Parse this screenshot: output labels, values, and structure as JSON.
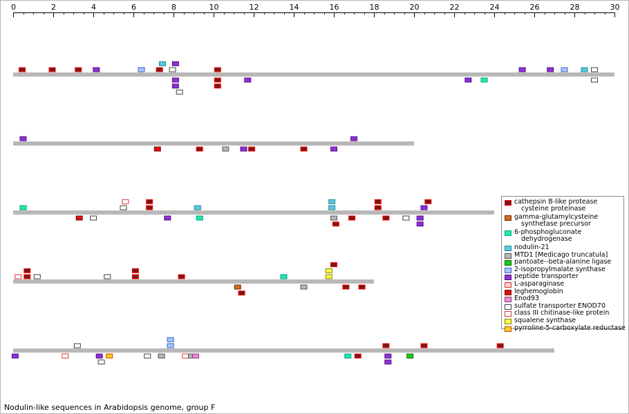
{
  "caption": "Nodulin-like sequences in Arabidopsis genome, group F",
  "axis": {
    "min": 0,
    "max": 30,
    "ticks": [
      "0",
      "2",
      "4",
      "6",
      "8",
      "10",
      "12",
      "14",
      "16",
      "18",
      "20",
      "22",
      "24",
      "26",
      "28",
      "30"
    ]
  },
  "legend": [
    {
      "key": "cathepsin",
      "line1": "cathepsin B-like protease",
      "line2": "cysteine proteinase",
      "fill": "#7a1818",
      "edge": "#ff0000"
    },
    {
      "key": "ggcs",
      "line1": "gamma-glutamylcysteine",
      "line2": "synthetase precursor",
      "fill": "#c87020",
      "edge": "#7a2800"
    },
    {
      "key": "pgd",
      "line1": "6-phosphogluconate",
      "line2": "dehydrogenase",
      "fill": "#22e8b4",
      "edge": "#00a070"
    },
    {
      "key": "nod21",
      "line1": "nodulin-21",
      "line2": "",
      "fill": "#58c8dc",
      "edge": "#208898"
    },
    {
      "key": "mtd1",
      "line1": "MTD1 [Medicago truncatula]",
      "line2": "",
      "fill": "#b8b8b8",
      "edge": "#505050"
    },
    {
      "key": "pantoate",
      "line1": "pantoate--beta-alanine ligase",
      "line2": "",
      "fill": "#18d018",
      "edge": "#006000"
    },
    {
      "key": "ipms",
      "line1": "2-isopropylmalate synthase",
      "line2": "",
      "fill": "#a8c8ff",
      "edge": "#4060c0"
    },
    {
      "key": "peptide",
      "line1": "peptide transporter",
      "line2": "",
      "fill": "#9030d8",
      "edge": "#501080"
    },
    {
      "key": "asparaginase",
      "line1": "L-asparaginase",
      "line2": "",
      "fill": "#ffd0d0",
      "edge": "#e03030"
    },
    {
      "key": "leghemoglobin",
      "line1": "leghemoglobin",
      "line2": "",
      "fill": "#e01010",
      "edge": "#800000"
    },
    {
      "key": "enod93",
      "line1": "Enod93",
      "line2": "",
      "fill": "#e890d0",
      "edge": "#903070"
    },
    {
      "key": "sulfate",
      "line1": "sulfate transporter ENOD70",
      "line2": "",
      "fill": "#ffffff",
      "edge": "#404040"
    },
    {
      "key": "chitinase",
      "line1": "class III chitinase-like protein",
      "line2": "",
      "fill": "#ffffff",
      "edge": "#e03030"
    },
    {
      "key": "squalene",
      "line1": "squalene synthase",
      "line2": "",
      "fill": "#ffff40",
      "edge": "#808000"
    },
    {
      "key": "p5cr",
      "line1": "pyrroline-5-carboxylate reductase",
      "line2": "",
      "fill": "#ffd020",
      "edge": "#c04000"
    }
  ],
  "chromosomes": [
    {
      "length": 30.0,
      "genes": [
        {
          "pos": 0.45,
          "lane": -1,
          "type": "cathepsin"
        },
        {
          "pos": 1.95,
          "lane": -1,
          "type": "cathepsin"
        },
        {
          "pos": 3.25,
          "lane": -1,
          "type": "cathepsin"
        },
        {
          "pos": 4.15,
          "lane": -1,
          "type": "peptide"
        },
        {
          "pos": 6.4,
          "lane": -1,
          "type": "ipms"
        },
        {
          "pos": 7.3,
          "lane": -1,
          "type": "cathepsin"
        },
        {
          "pos": 7.45,
          "lane": -2,
          "type": "nod21"
        },
        {
          "pos": 7.95,
          "lane": -1,
          "type": "sulfate"
        },
        {
          "pos": 8.1,
          "lane": -2,
          "type": "peptide"
        },
        {
          "pos": 10.2,
          "lane": -1,
          "type": "cathepsin"
        },
        {
          "pos": 25.4,
          "lane": -1,
          "type": "peptide"
        },
        {
          "pos": 26.8,
          "lane": -1,
          "type": "peptide"
        },
        {
          "pos": 27.5,
          "lane": -1,
          "type": "ipms"
        },
        {
          "pos": 28.5,
          "lane": -1,
          "type": "nod21"
        },
        {
          "pos": 29.0,
          "lane": -1,
          "type": "sulfate"
        },
        {
          "pos": 8.1,
          "lane": 1,
          "type": "peptide"
        },
        {
          "pos": 8.1,
          "lane": 2,
          "type": "peptide"
        },
        {
          "pos": 8.3,
          "lane": 3,
          "type": "sulfate"
        },
        {
          "pos": 10.2,
          "lane": 1,
          "type": "cathepsin"
        },
        {
          "pos": 10.2,
          "lane": 2,
          "type": "cathepsin"
        },
        {
          "pos": 11.7,
          "lane": 1,
          "type": "peptide"
        },
        {
          "pos": 22.7,
          "lane": 1,
          "type": "peptide"
        },
        {
          "pos": 23.5,
          "lane": 1,
          "type": "pgd"
        },
        {
          "pos": 29.0,
          "lane": 1,
          "type": "sulfate"
        }
      ]
    },
    {
      "length": 20.0,
      "genes": [
        {
          "pos": 0.5,
          "lane": -1,
          "type": "peptide"
        },
        {
          "pos": 17.0,
          "lane": -1,
          "type": "peptide"
        },
        {
          "pos": 7.2,
          "lane": 1,
          "type": "leghemoglobin"
        },
        {
          "pos": 9.3,
          "lane": 1,
          "type": "cathepsin"
        },
        {
          "pos": 10.6,
          "lane": 1,
          "type": "mtd1"
        },
        {
          "pos": 11.5,
          "lane": 1,
          "type": "peptide"
        },
        {
          "pos": 11.9,
          "lane": 1,
          "type": "cathepsin"
        },
        {
          "pos": 14.5,
          "lane": 1,
          "type": "cathepsin"
        },
        {
          "pos": 16.0,
          "lane": 1,
          "type": "peptide"
        }
      ]
    },
    {
      "length": 24.0,
      "genes": [
        {
          "pos": 0.5,
          "lane": -1,
          "type": "pgd"
        },
        {
          "pos": 5.5,
          "lane": -1,
          "type": "sulfate"
        },
        {
          "pos": 5.6,
          "lane": -2,
          "type": "chitinase"
        },
        {
          "pos": 6.8,
          "lane": -1,
          "type": "cathepsin"
        },
        {
          "pos": 6.8,
          "lane": -2,
          "type": "cathepsin"
        },
        {
          "pos": 9.2,
          "lane": -1,
          "type": "nod21"
        },
        {
          "pos": 15.9,
          "lane": -1,
          "type": "nod21"
        },
        {
          "pos": 15.9,
          "lane": -2,
          "type": "nod21"
        },
        {
          "pos": 18.2,
          "lane": -1,
          "type": "cathepsin"
        },
        {
          "pos": 18.2,
          "lane": -2,
          "type": "cathepsin"
        },
        {
          "pos": 20.5,
          "lane": -1,
          "type": "peptide"
        },
        {
          "pos": 20.7,
          "lane": -2,
          "type": "cathepsin"
        },
        {
          "pos": 3.3,
          "lane": 1,
          "type": "leghemoglobin"
        },
        {
          "pos": 4.0,
          "lane": 1,
          "type": "sulfate"
        },
        {
          "pos": 7.7,
          "lane": 1,
          "type": "peptide"
        },
        {
          "pos": 9.3,
          "lane": 1,
          "type": "pgd"
        },
        {
          "pos": 16.0,
          "lane": 1,
          "type": "mtd1"
        },
        {
          "pos": 16.1,
          "lane": 2,
          "type": "cathepsin"
        },
        {
          "pos": 16.9,
          "lane": 1,
          "type": "cathepsin"
        },
        {
          "pos": 18.6,
          "lane": 1,
          "type": "cathepsin"
        },
        {
          "pos": 19.6,
          "lane": 1,
          "type": "sulfate"
        },
        {
          "pos": 20.3,
          "lane": 1,
          "type": "peptide"
        },
        {
          "pos": 20.3,
          "lane": 2,
          "type": "peptide"
        }
      ]
    },
    {
      "length": 18.0,
      "genes": [
        {
          "pos": 0.25,
          "lane": -1,
          "type": "chitinase"
        },
        {
          "pos": 0.7,
          "lane": -1,
          "type": "cathepsin"
        },
        {
          "pos": 0.7,
          "lane": -2,
          "type": "cathepsin"
        },
        {
          "pos": 1.2,
          "lane": -1,
          "type": "sulfate"
        },
        {
          "pos": 4.7,
          "lane": -1,
          "type": "sulfate"
        },
        {
          "pos": 6.1,
          "lane": -1,
          "type": "cathepsin"
        },
        {
          "pos": 6.1,
          "lane": -2,
          "type": "cathepsin"
        },
        {
          "pos": 8.4,
          "lane": -1,
          "type": "cathepsin"
        },
        {
          "pos": 13.5,
          "lane": -1,
          "type": "pgd"
        },
        {
          "pos": 15.75,
          "lane": -1,
          "type": "squalene"
        },
        {
          "pos": 15.75,
          "lane": -2,
          "type": "squalene"
        },
        {
          "pos": 16.0,
          "lane": -3,
          "type": "cathepsin"
        },
        {
          "pos": 11.2,
          "lane": 1,
          "type": "ggcs"
        },
        {
          "pos": 11.4,
          "lane": 2,
          "type": "cathepsin"
        },
        {
          "pos": 14.5,
          "lane": 1,
          "type": "mtd1"
        },
        {
          "pos": 16.6,
          "lane": 1,
          "type": "cathepsin"
        },
        {
          "pos": 17.4,
          "lane": 1,
          "type": "cathepsin"
        }
      ]
    },
    {
      "length": 27.0,
      "genes": [
        {
          "pos": 3.2,
          "lane": -1,
          "type": "sulfate"
        },
        {
          "pos": 7.85,
          "lane": -1,
          "type": "ipms"
        },
        {
          "pos": 7.85,
          "lane": -2,
          "type": "ipms"
        },
        {
          "pos": 18.6,
          "lane": -1,
          "type": "cathepsin"
        },
        {
          "pos": 20.5,
          "lane": -1,
          "type": "cathepsin"
        },
        {
          "pos": 24.3,
          "lane": -1,
          "type": "cathepsin"
        },
        {
          "pos": 0.1,
          "lane": 1,
          "type": "peptide"
        },
        {
          "pos": 2.6,
          "lane": 1,
          "type": "chitinase"
        },
        {
          "pos": 4.3,
          "lane": 1,
          "type": "peptide"
        },
        {
          "pos": 4.4,
          "lane": 2,
          "type": "sulfate"
        },
        {
          "pos": 4.8,
          "lane": 1,
          "type": "p5cr"
        },
        {
          "pos": 6.7,
          "lane": 1,
          "type": "sulfate"
        },
        {
          "pos": 7.4,
          "lane": 1,
          "type": "mtd1"
        },
        {
          "pos": 8.6,
          "lane": 1,
          "type": "chitinase"
        },
        {
          "pos": 8.9,
          "lane": 1,
          "type": "mtd1"
        },
        {
          "pos": 9.1,
          "lane": 1,
          "type": "enod93"
        },
        {
          "pos": 16.7,
          "lane": 1,
          "type": "pgd"
        },
        {
          "pos": 17.2,
          "lane": 1,
          "type": "cathepsin"
        },
        {
          "pos": 18.7,
          "lane": 1,
          "type": "peptide"
        },
        {
          "pos": 18.7,
          "lane": 2,
          "type": "peptide"
        },
        {
          "pos": 19.8,
          "lane": 1,
          "type": "pantoate"
        }
      ]
    }
  ]
}
